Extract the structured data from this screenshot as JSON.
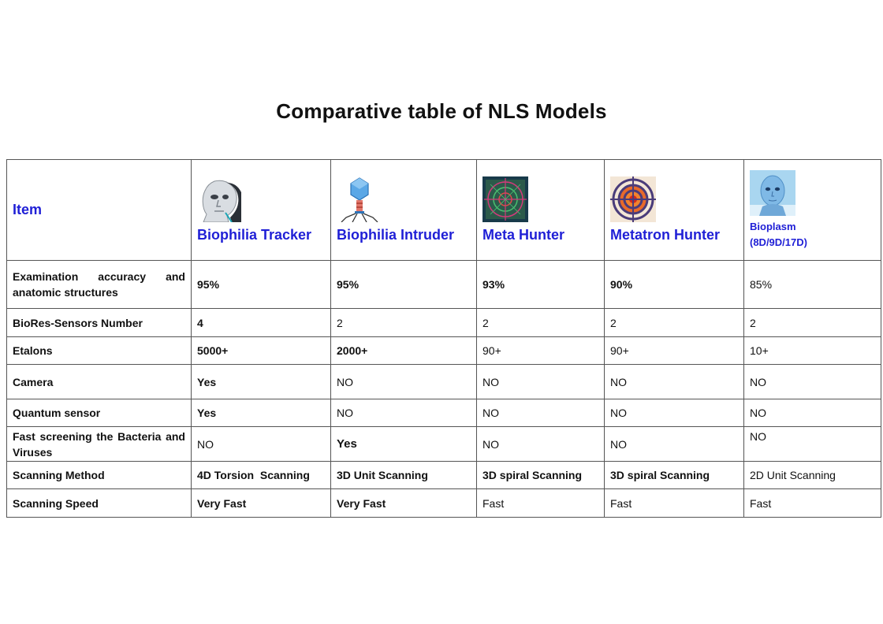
{
  "title": "Comparative table of NLS Models",
  "colors": {
    "highlight": "#e02020",
    "header_blue": "#1f1fd6",
    "border": "#555555"
  },
  "header": {
    "item": "Item",
    "models": [
      {
        "name": "Biophilia Tracker",
        "icon": "robot-head-icon"
      },
      {
        "name": "Biophilia Intruder",
        "icon": "bacteriophage-icon"
      },
      {
        "name": "Meta Hunter",
        "icon": "target-scan-icon"
      },
      {
        "name": "Metatron Hunter",
        "icon": "target-circles-icon"
      },
      {
        "name_line1": "Bioplasm",
        "name_line2": "(8D/9D/17D)",
        "icon": "humanoid-face-icon"
      }
    ]
  },
  "rows": [
    {
      "label": "Examination accuracy and anatomic structures",
      "cells": [
        "95%",
        "95%",
        "93%",
        "90%",
        "85%"
      ]
    },
    {
      "label": "BioRes-Sensors Number",
      "cells": [
        "4",
        "2",
        "2",
        "2",
        "2"
      ]
    },
    {
      "label": "Etalons",
      "cells": [
        "5000+",
        "2000+",
        "90+",
        "90+",
        "10+"
      ]
    },
    {
      "label": "Camera",
      "cells": [
        "Yes",
        "NO",
        "NO",
        "NO",
        "NO"
      ]
    },
    {
      "label": "Quantum sensor",
      "cells": [
        "Yes",
        "NO",
        "NO",
        "NO",
        "NO"
      ]
    },
    {
      "label": "Fast screening the Bacteria and Viruses",
      "cells": [
        "NO",
        "Yes",
        "NO",
        "NO",
        "NO"
      ]
    },
    {
      "label": "Scanning Method",
      "cells": [
        "4D Torsion  Scanning",
        "3D Unit Scanning",
        "3D spiral Scanning",
        "3D spiral Scanning",
        "2D Unit Scanning"
      ]
    },
    {
      "label": "Scanning Speed",
      "cells": [
        "Very Fast",
        "Very Fast",
        "Fast",
        "Fast",
        "Fast"
      ]
    }
  ]
}
